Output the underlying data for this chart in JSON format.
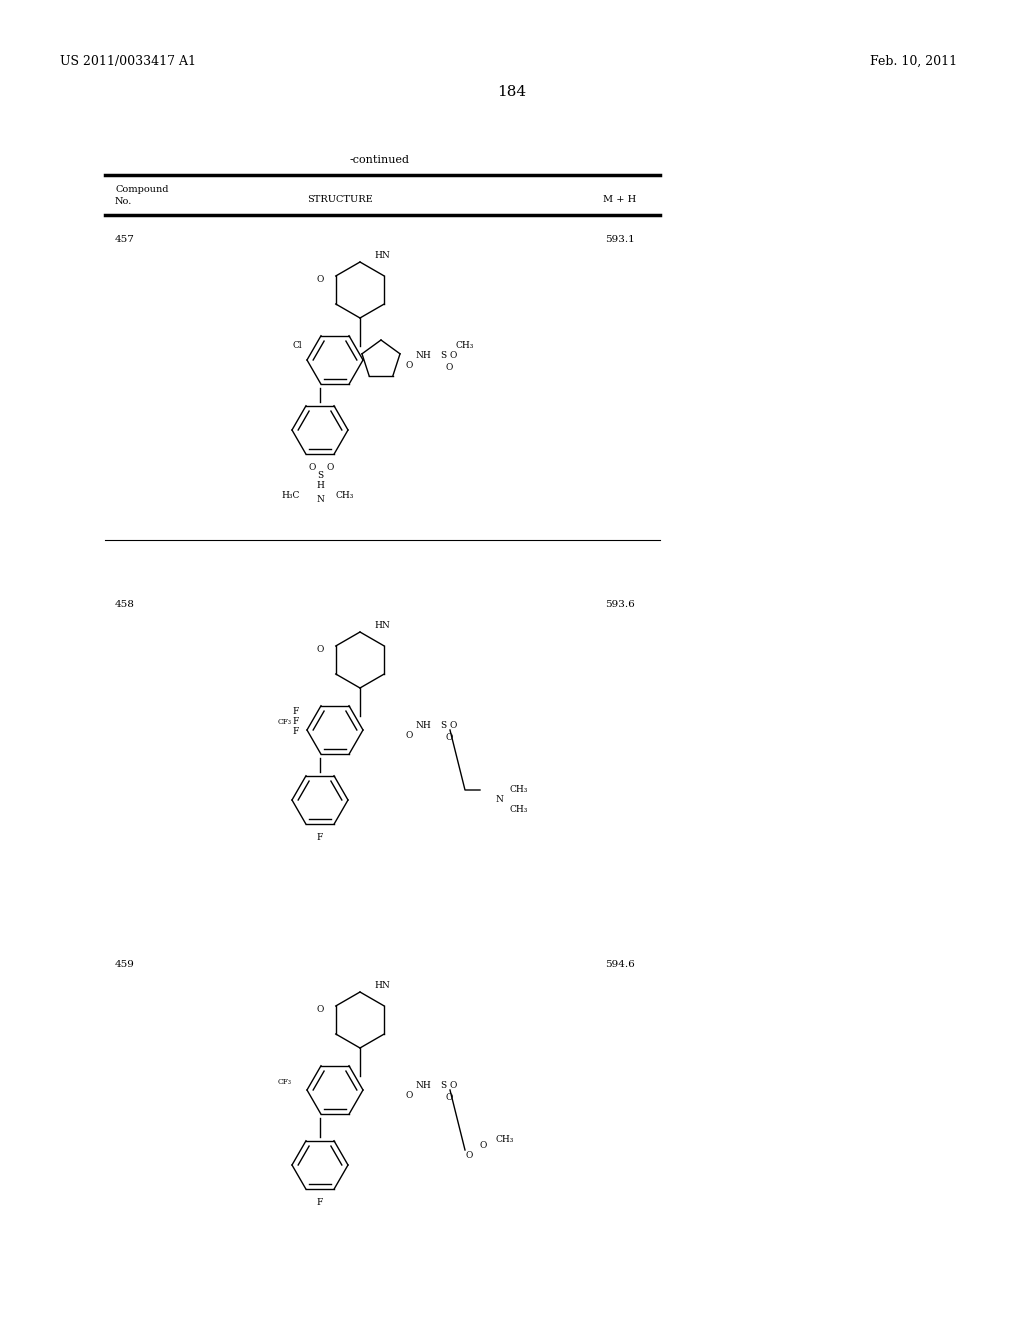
{
  "patent_number": "US 2011/0033417 A1",
  "date": "Feb. 10, 2011",
  "page_number": "184",
  "table_header": "-continued",
  "col1": "Compound\nNo.",
  "col2": "STRUCTURE",
  "col3": "M + H",
  "compounds": [
    {
      "no": "457",
      "mh": "593.1"
    },
    {
      "no": "458",
      "mh": "593.6"
    },
    {
      "no": "459",
      "mh": "594.6"
    }
  ],
  "bg_color": "#ffffff",
  "text_color": "#000000",
  "font_size_header": 9,
  "font_size_body": 8,
  "font_size_patent": 9,
  "font_size_page": 11
}
